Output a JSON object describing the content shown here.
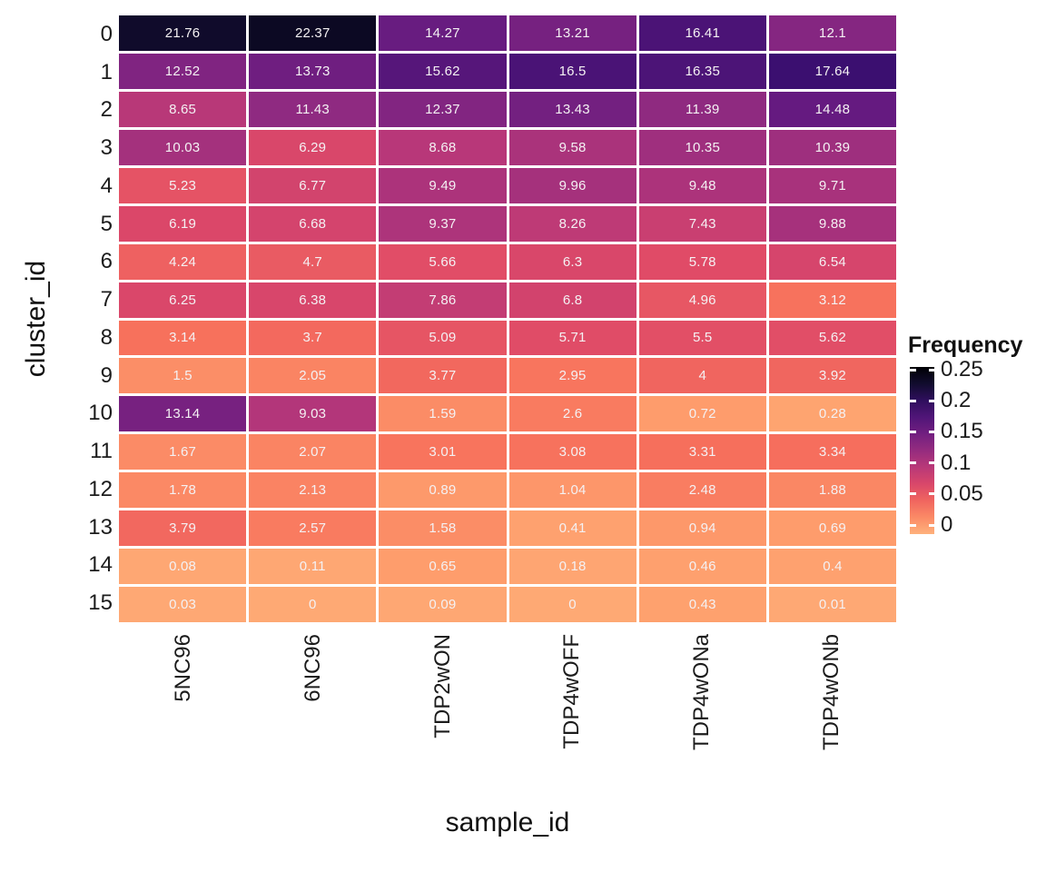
{
  "chart_data": {
    "type": "heatmap",
    "title": "",
    "xlabel": "sample_id",
    "ylabel": "cluster_id",
    "legend": {
      "title": "Frequency",
      "tick_labels": [
        "0.25",
        "0.2",
        "0.15",
        "0.1",
        "0.05",
        "0"
      ],
      "tick_values": [
        0.25,
        0.2,
        0.15,
        0.1,
        0.05,
        0
      ],
      "range": [
        0,
        0.25
      ],
      "position": "right",
      "palette": "magma-reversed",
      "color_high": "#000004",
      "color_low": "#feaa76"
    },
    "grid": false,
    "cell_border_color": "#ffffff",
    "cell_text_color": "#f4f1f3",
    "categories": [
      "5NC96",
      "6NC96",
      "TDP2wON",
      "TDP4wOFF",
      "TDP4wONa",
      "TDP4wONb"
    ],
    "rows": [
      "0",
      "1",
      "2",
      "3",
      "4",
      "5",
      "6",
      "7",
      "8",
      "9",
      "10",
      "11",
      "12",
      "13",
      "14",
      "15"
    ],
    "values": [
      [
        "21.76",
        "22.37",
        "14.27",
        "13.21",
        "16.41",
        "12.1"
      ],
      [
        "12.52",
        "13.73",
        "15.62",
        "16.5",
        "16.35",
        "17.64"
      ],
      [
        "8.65",
        "11.43",
        "12.37",
        "13.43",
        "11.39",
        "14.48"
      ],
      [
        "10.03",
        "6.29",
        "8.68",
        "9.58",
        "10.35",
        "10.39"
      ],
      [
        "5.23",
        "6.77",
        "9.49",
        "9.96",
        "9.48",
        "9.71"
      ],
      [
        "6.19",
        "6.68",
        "9.37",
        "8.26",
        "7.43",
        "9.88"
      ],
      [
        "4.24",
        "4.7",
        "5.66",
        "6.3",
        "5.78",
        "6.54"
      ],
      [
        "6.25",
        "6.38",
        "7.86",
        "6.8",
        "4.96",
        "3.12"
      ],
      [
        "3.14",
        "3.7",
        "5.09",
        "5.71",
        "5.5",
        "5.62"
      ],
      [
        "1.5",
        "2.05",
        "3.77",
        "2.95",
        "4",
        "3.92"
      ],
      [
        "13.14",
        "9.03",
        "1.59",
        "2.6",
        "0.72",
        "0.28"
      ],
      [
        "1.67",
        "2.07",
        "3.01",
        "3.08",
        "3.31",
        "3.34"
      ],
      [
        "1.78",
        "2.13",
        "0.89",
        "1.04",
        "2.48",
        "1.88"
      ],
      [
        "3.79",
        "2.57",
        "1.58",
        "0.41",
        "0.94",
        "0.69"
      ],
      [
        "0.08",
        "0.11",
        "0.65",
        "0.18",
        "0.46",
        "0.4"
      ],
      [
        "0.03",
        "0",
        "0.09",
        "0",
        "0.43",
        "0.01"
      ]
    ]
  }
}
